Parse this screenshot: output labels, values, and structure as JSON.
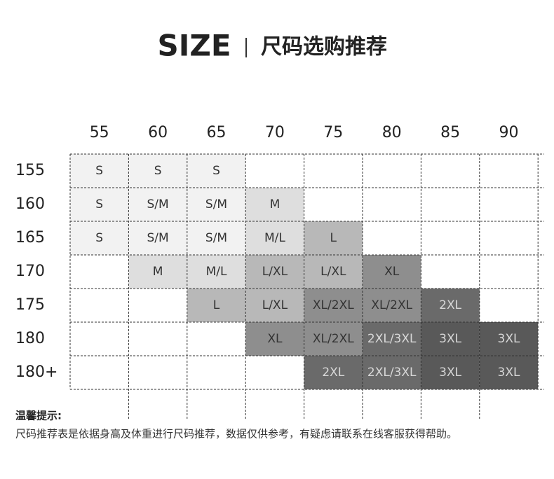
{
  "header": {
    "title": "SIZE",
    "subtitle": "尺码选购推荐"
  },
  "table": {
    "columns": [
      "55",
      "60",
      "65",
      "70",
      "75",
      "80",
      "85",
      "90"
    ],
    "rows": [
      {
        "label": "155",
        "cells": [
          "S",
          "S",
          "S",
          null,
          null,
          null,
          null,
          null
        ],
        "colors": [
          "#f2f2f2",
          "#f2f2f2",
          "#f2f2f2",
          null,
          null,
          null,
          null,
          null
        ]
      },
      {
        "label": "160",
        "cells": [
          "S",
          "S/M",
          "S/M",
          "M",
          null,
          null,
          null,
          null
        ],
        "colors": [
          "#f2f2f2",
          "#f2f2f2",
          "#f2f2f2",
          "#dedede",
          null,
          null,
          null,
          null
        ]
      },
      {
        "label": "165",
        "cells": [
          "S",
          "S/M",
          "S/M",
          "M/L",
          "L",
          null,
          null,
          null
        ],
        "colors": [
          "#f2f2f2",
          "#f2f2f2",
          "#f2f2f2",
          "#dedede",
          "#b8b8b8",
          null,
          null,
          null
        ]
      },
      {
        "label": "170",
        "cells": [
          null,
          "M",
          "M/L",
          "L/XL",
          "L/XL",
          "XL",
          null,
          null
        ],
        "colors": [
          null,
          "#dedede",
          "#dedede",
          "#b8b8b8",
          "#b8b8b8",
          "#8e8e8e",
          null,
          null
        ]
      },
      {
        "label": "175",
        "cells": [
          null,
          null,
          "L",
          "L/XL",
          "XL/2XL",
          "XL/2XL",
          "2XL",
          null
        ],
        "colors": [
          null,
          null,
          "#b8b8b8",
          "#b8b8b8",
          "#8e8e8e",
          "#8e8e8e",
          "#6a6a6a",
          null
        ]
      },
      {
        "label": "180",
        "cells": [
          null,
          null,
          null,
          "XL",
          "XL/2XL",
          "2XL/3XL",
          "3XL",
          "3XL"
        ],
        "colors": [
          null,
          null,
          null,
          "#8e8e8e",
          "#8e8e8e",
          "#6a6a6a",
          "#595959",
          "#595959"
        ]
      },
      {
        "label": "180+",
        "cells": [
          null,
          null,
          null,
          null,
          "2XL",
          "2XL/3XL",
          "3XL",
          "3XL"
        ],
        "colors": [
          null,
          null,
          null,
          null,
          "#6a6a6a",
          "#6a6a6a",
          "#595959",
          "#595959"
        ]
      }
    ]
  },
  "note": {
    "title": "温馨提示:",
    "text": "尺码推荐表是依据身高及体重进行尺码推荐，数据仅供参考，有疑虑请联系在线客服获得帮助。"
  }
}
